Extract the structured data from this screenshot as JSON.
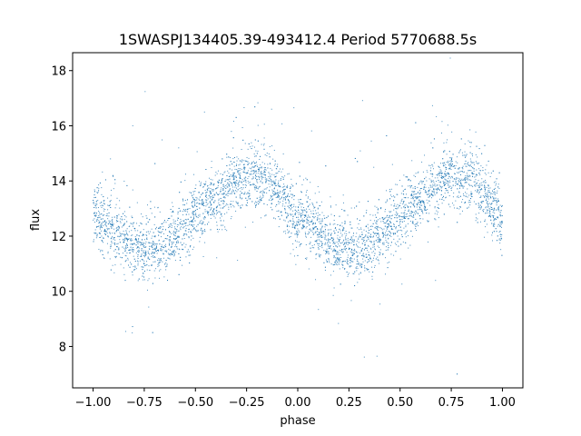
{
  "chart_data": {
    "type": "scatter",
    "title": "1SWASPJ134405.39-493412.4 Period 5770688.5s",
    "xlabel": "phase",
    "ylabel": "flux",
    "xlim": [
      -1.1,
      1.1
    ],
    "ylim": [
      6.5,
      18.65
    ],
    "xticks": [
      -1.0,
      -0.75,
      -0.5,
      -0.25,
      0.0,
      0.25,
      0.5,
      0.75,
      1.0
    ],
    "xtick_labels": [
      "−1.00",
      "−0.75",
      "−0.50",
      "−0.25",
      "0.00",
      "0.25",
      "0.50",
      "0.75",
      "1.00"
    ],
    "yticks": [
      8,
      10,
      12,
      14,
      16,
      18
    ],
    "ytick_labels": [
      "8",
      "10",
      "12",
      "14",
      "16",
      "18"
    ],
    "grid": false,
    "marker_color": "#1f77b4",
    "curve": {
      "description_points_phase": [
        0.0,
        0.05,
        0.1,
        0.15,
        0.2,
        0.25,
        0.3,
        0.35,
        0.4,
        0.45,
        0.5,
        0.55,
        0.6,
        0.65,
        0.7,
        0.75,
        0.8,
        0.85,
        0.9,
        0.95,
        1.0
      ],
      "description_points_flux": [
        12.9,
        12.5,
        12.1,
        11.8,
        11.6,
        11.5,
        11.5,
        11.7,
        12.0,
        12.4,
        12.8,
        13.1,
        13.3,
        13.6,
        13.9,
        14.2,
        14.2,
        14.0,
        13.6,
        13.1,
        12.4
      ],
      "scatter_sigma": 0.55,
      "n_points": 5200
    }
  }
}
